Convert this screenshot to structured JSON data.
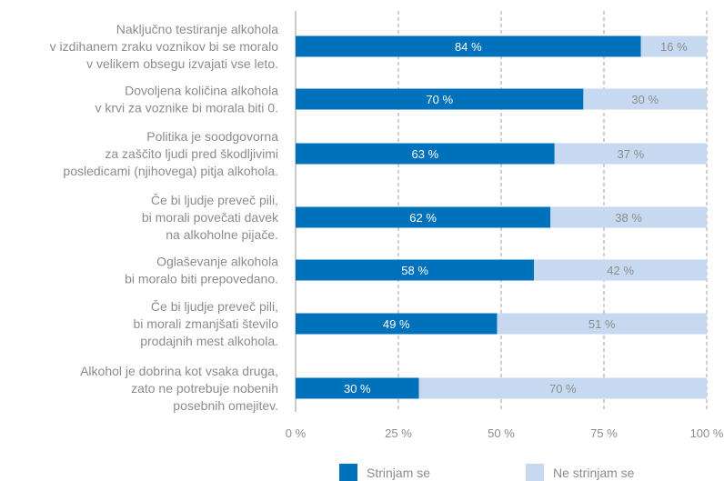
{
  "chart_data": {
    "type": "bar",
    "orientation": "horizontal",
    "stacked": true,
    "categories": [
      [
        "Naključno testiranje alkohola",
        "v izdihanem zraku voznikov bi se moralo",
        "v velikem obsegu izvajati vse leto."
      ],
      [
        "Dovoljena količina alkohola",
        "v krvi za voznike bi morala biti 0."
      ],
      [
        "Politika je soodgovorna",
        "za zaščito ljudi pred škodljivimi",
        "posledicami (njihovega) pitja alkohola."
      ],
      [
        "Če bi ljudje preveč pili,",
        "bi morali povečati davek",
        "na alkoholne pijače."
      ],
      [
        "Oglaševanje alkohola",
        "bi moralo biti prepovedano."
      ],
      [
        "Če bi ljudje preveč pili,",
        "bi morali zmanjšati število",
        "prodajnih mest alkohola."
      ],
      [
        "Alkohol je dobrina kot vsaka druga,",
        "zato ne potrebuje nobenih",
        "posebnih omejitev."
      ]
    ],
    "series": [
      {
        "name": "Strinjam se",
        "color": "#0072bc",
        "values": [
          84,
          70,
          63,
          62,
          58,
          49,
          30
        ]
      },
      {
        "name": "Ne strinjam se",
        "color": "#c6d9f0",
        "values": [
          16,
          30,
          37,
          38,
          42,
          51,
          70
        ]
      }
    ],
    "value_suffix": " %",
    "xlim": [
      0,
      100
    ],
    "xticks": [
      "0 %",
      "25 %",
      "50 %",
      "75 %",
      "100 %"
    ],
    "grid": "vertical dashed",
    "legend_position": "bottom"
  }
}
